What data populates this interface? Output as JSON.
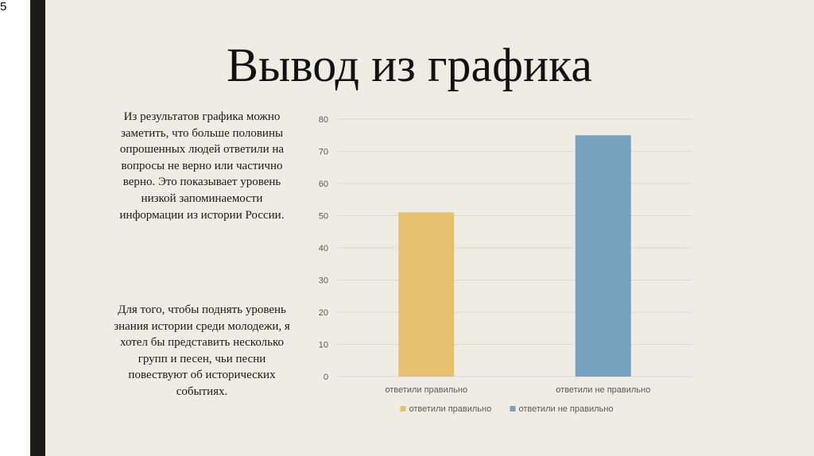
{
  "slide": {
    "number": "5",
    "title": "Вывод из графика",
    "paragraphs": [
      "Из результатов графика можно заметить, что больше половины опрошенных людей ответили на вопросы не верно или частично верно. Это показывает уровень низкой запоминаемости информации из истории России.",
      "Для того, чтобы поднять уровень знания истории среди молодежи, я хотел бы представить несколько групп и песен, чьи песни повествуют об исторических событиях."
    ]
  },
  "chart_data": {
    "type": "bar",
    "title": "",
    "xlabel": "",
    "ylabel": "",
    "categories": [
      "ответили правильно",
      "ответили не правильно"
    ],
    "series": [
      {
        "name": "ответили правильно",
        "color": "#e5c06e",
        "values": [
          51,
          null
        ]
      },
      {
        "name": "ответили не правильно",
        "color": "#77a3be",
        "values": [
          null,
          75
        ]
      }
    ],
    "ylim": [
      0,
      80
    ],
    "yticks": [
      0,
      10,
      20,
      30,
      40,
      50,
      60,
      70,
      80
    ],
    "grid": true,
    "legend": "bottom",
    "colors": {
      "grid": "#d9d9d9",
      "text": "#595959"
    }
  }
}
